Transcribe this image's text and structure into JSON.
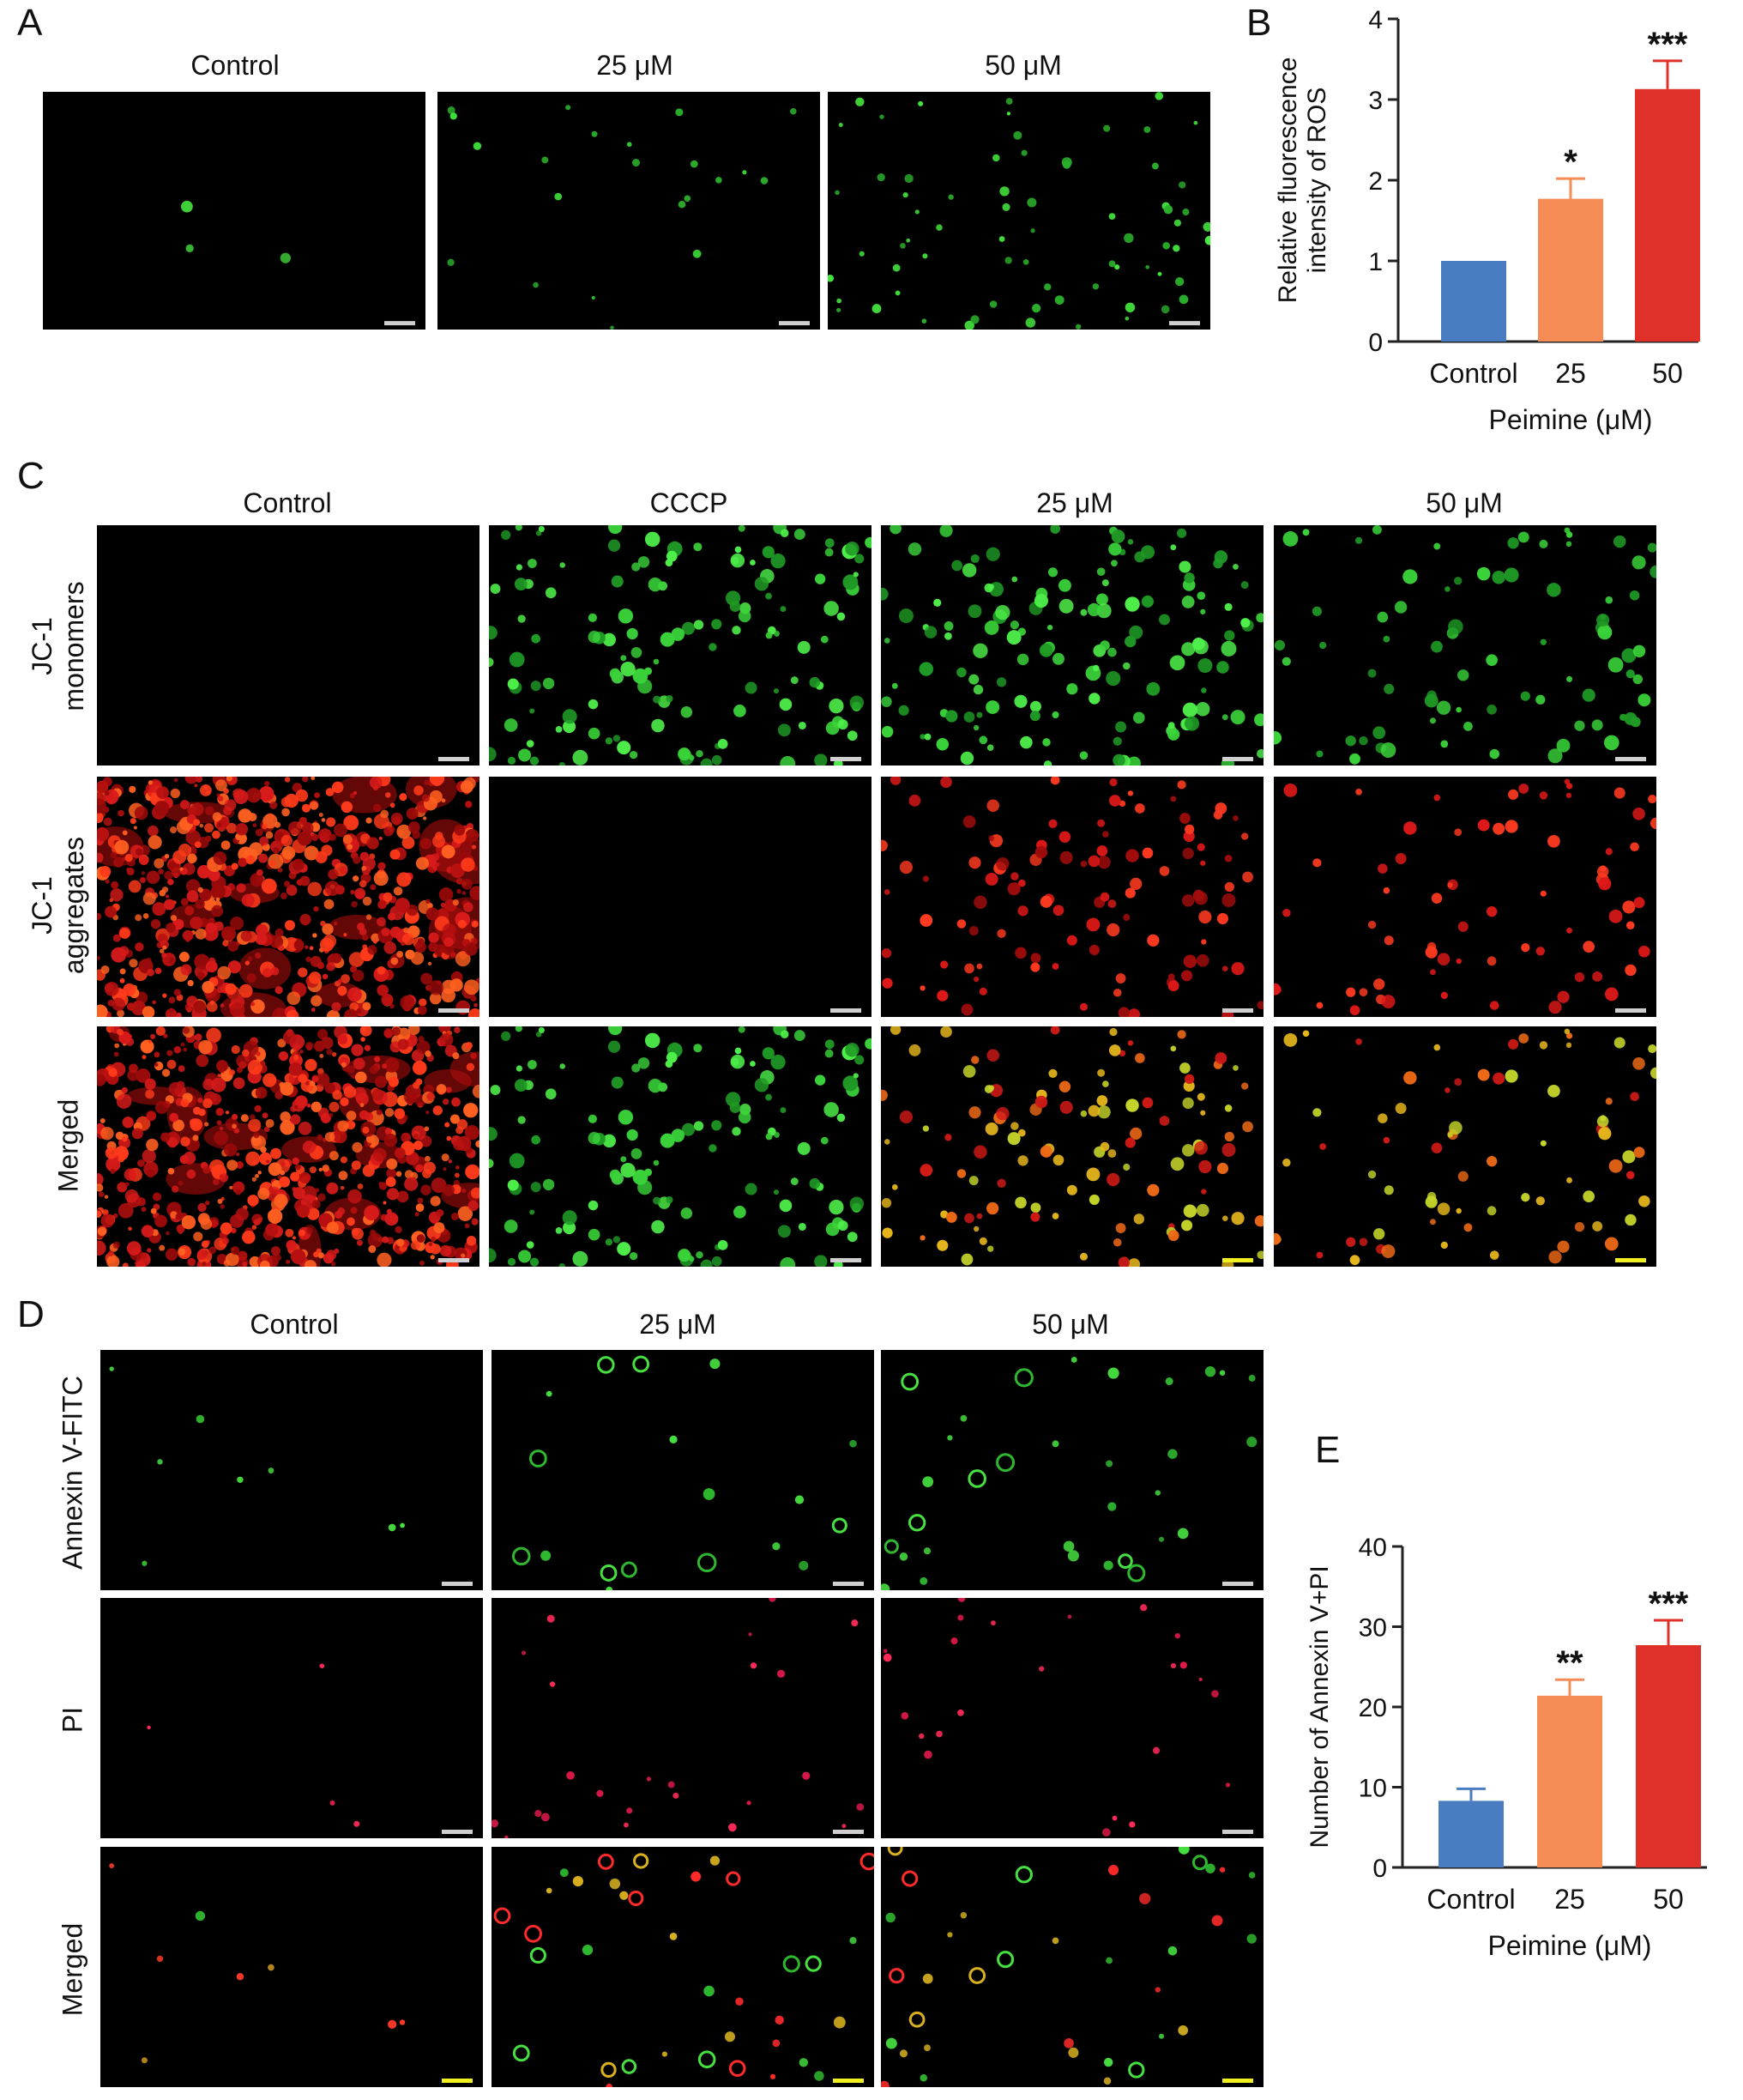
{
  "panels": {
    "A": {
      "label": "A",
      "columns": [
        "Control",
        "25 μM",
        "50 μM"
      ]
    },
    "C": {
      "label": "C",
      "columns": [
        "Control",
        "CCCP",
        "25 μM",
        "50 μM"
      ],
      "rows": [
        "JC-1\nmonomers",
        "JC-1\naggregates",
        "Merged"
      ]
    },
    "D": {
      "label": "D",
      "columns": [
        "Control",
        "25 μM",
        "50 μM"
      ],
      "rows": [
        "Annexin V-FITC",
        "PI",
        "Merged"
      ]
    }
  },
  "chart_data": [
    {
      "panel": "B",
      "type": "bar",
      "categories": [
        "Control",
        "25",
        "50"
      ],
      "values": [
        1.0,
        1.77,
        3.13
      ],
      "errors": [
        0,
        0.25,
        0.35
      ],
      "significance": [
        "",
        "*",
        "***"
      ],
      "colors": [
        "#4a7cc2",
        "#f58c55",
        "#e0302a"
      ],
      "xlabel": "Peimine (μM)",
      "ylabel": "Relative fluorescence\nintensity of ROS",
      "ylim": [
        0,
        4
      ],
      "yticks": [
        0,
        1,
        2,
        3,
        4
      ]
    },
    {
      "panel": "E",
      "type": "bar",
      "categories": [
        "Control",
        "25",
        "50"
      ],
      "values": [
        8.3,
        21.4,
        27.7
      ],
      "errors": [
        1.5,
        2.0,
        3.1
      ],
      "significance": [
        "",
        "**",
        "***"
      ],
      "colors": [
        "#4a7cc2",
        "#f58c55",
        "#e0302a"
      ],
      "xlabel": "Peimine (μM)",
      "ylabel": "Number of Annexin V+PI",
      "ylim": [
        0,
        40
      ],
      "yticks": [
        0,
        10,
        20,
        30,
        40
      ]
    }
  ]
}
